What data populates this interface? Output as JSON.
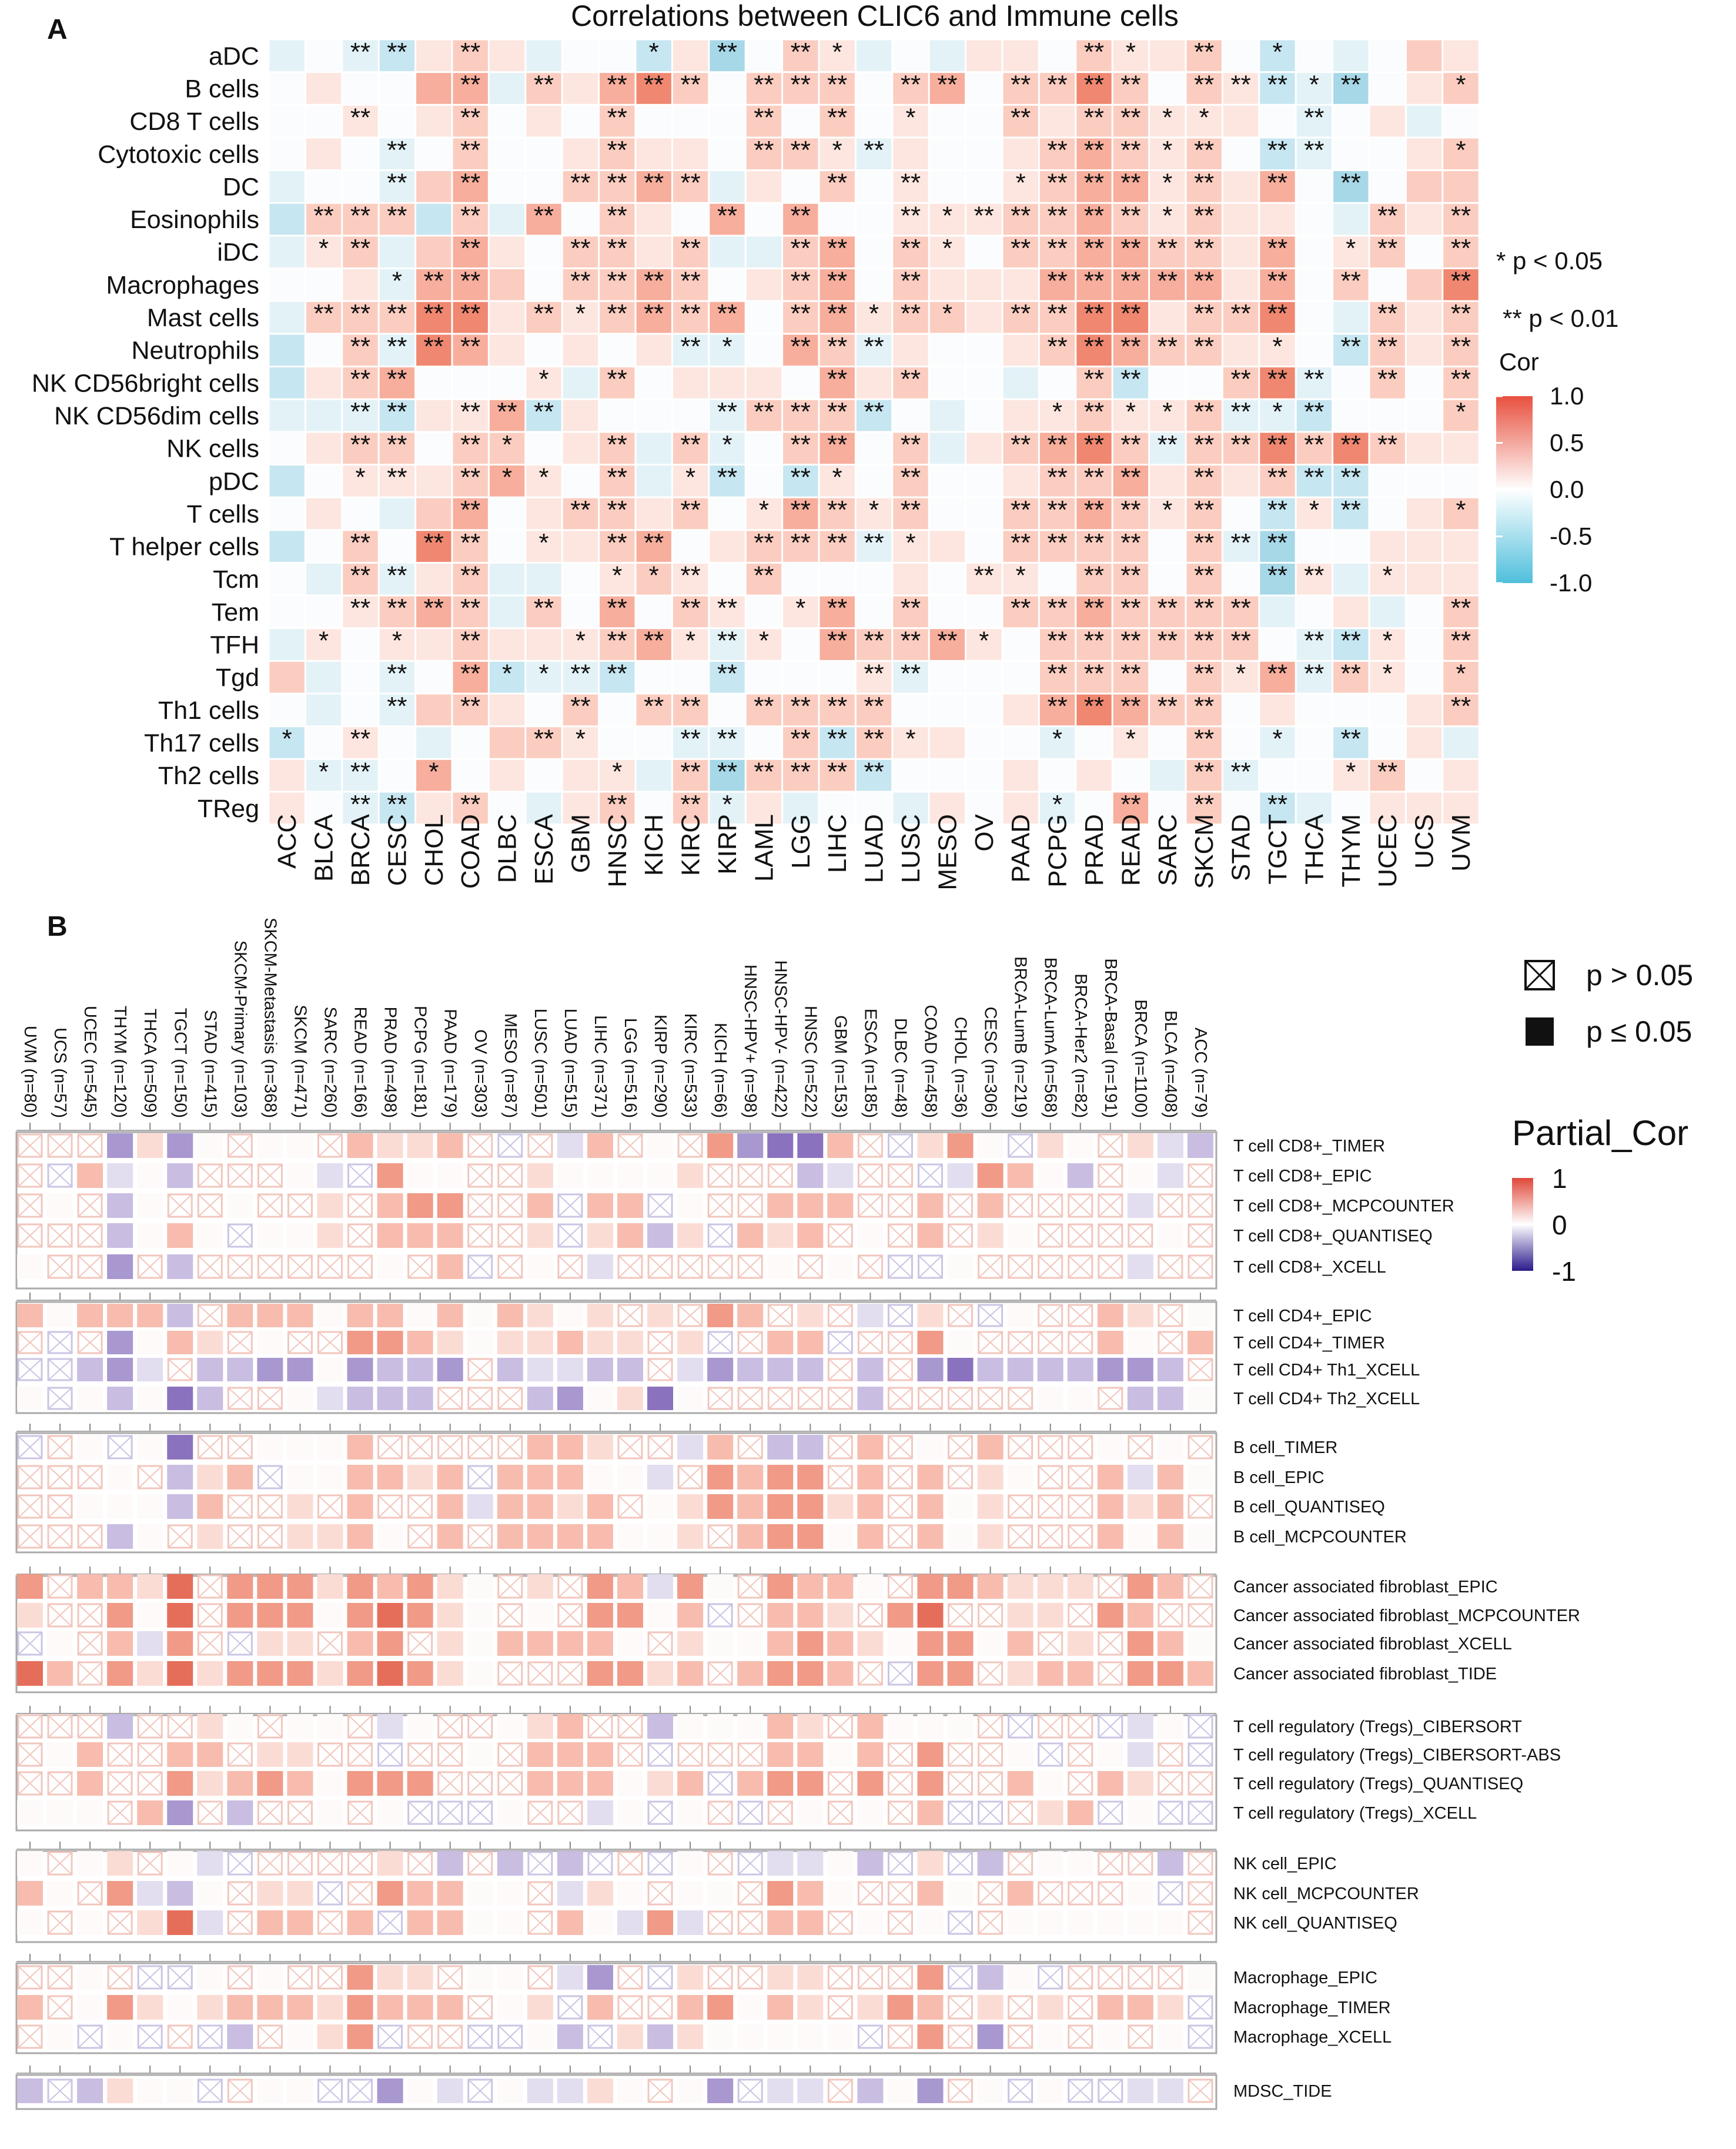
{
  "chart_data": [
    {
      "type": "heatmap",
      "panel_label": "A",
      "title": "Correlations between CLIC6 and Immune cells",
      "value_encoding": "each token = correlation level (level x 0.15 = approx Cor) followed by significance stars",
      "columns": [
        "ACC",
        "BLCA",
        "BRCA",
        "CESC",
        "CHOL",
        "COAD",
        "DLBC",
        "ESCA",
        "GBM",
        "HNSC",
        "KICH",
        "KIRC",
        "KIRP",
        "LAML",
        "LGG",
        "LIHC",
        "LUAD",
        "LUSC",
        "MESO",
        "OV",
        "PAAD",
        "PCPG",
        "PRAD",
        "READ",
        "SARC",
        "SKCM",
        "STAD",
        "TGCT",
        "THCA",
        "THYM",
        "UCEC",
        "UCS",
        "UVM"
      ],
      "rows": [
        {
          "label": "aDC",
          "cells": "-1 0 -1** -2** 1 2** 1 -1 0 0 -2* 1 -3** 0 2** 1* -1 0 -1 1 1 0 2** 1* 1 2** 0 -2* 0 -1 0 2 1"
        },
        {
          "label": "B cells",
          "cells": "0 1 0 0 3 3** -1 2** 1 3** 4** 2** 0 2** 2** 2** 0 2** 3** 0 2** 2** 4** 2** 0 2** 1** -2** -1* -3** 0 1 2*"
        },
        {
          "label": "CD8 T cells",
          "cells": "0 0 1** 0 1 2** 0 1 0 2** 0 0 0 2** 0 2** 0 1* 0 0 2** 1 2** 2** 1* 1* 1 0 -1** 0 1 -1 0"
        },
        {
          "label": "Cytotoxic cells",
          "cells": "0 1 0 -1** 0 2** 0 0 1 2** 1 1 0 2** 2** 1* -1** 1 0 0 1 2** 3** 2** 1* 2** 0 -2** -1** 0 0 1 2*"
        },
        {
          "label": "DC",
          "cells": "-1 0 0 -1** 2 3** 0 0 2** 2** 3** 2** -1 1 0 2** 0 1** 0 0 1* 2** 3** 3** 1* 2** 1 3** 0 -3** 0 2 2"
        },
        {
          "label": "Eosinophils",
          "cells": "-2 2** 2** 2** -2 2** -1 3** 0 2** 1 0 3** 0 3** 0 0 1** 1* 1** 2** 2** 3** 2** 1* 2** 1 1 0 -1 2** 1 2**"
        },
        {
          "label": "iDC",
          "cells": "-1 1* 2** -1 2 3** 1 0 2** 2** 1 2** -1 -1 2** 3** 0 2** 1* 0 2** 2** 3** 3** 2** 2** 1 3** 0 1* 2** 0 2**"
        },
        {
          "label": "Macrophages",
          "cells": "0 0 1 -1* 3** 3** 2 0 2** 2** 3** 2** 0 1 2** 3** 0 2** 1 1 1 3** 3** 3** 3** 3** 1 3** 0 2** 0 2 4**"
        },
        {
          "label": "Mast cells",
          "cells": "-1 2** 2** 2** 4** 4** 1 2** 1* 2** 3** 2** 3** 0 2** 3** 1* 2** 2* 1 2** 2** 4** 4** 1 2** 2** 4** 0 -1 2** 1 2**"
        },
        {
          "label": "Neutrophils",
          "cells": "-2 0 2** -1** 4** 3** 1 0 1 0 1 -1** -1* 0 3** 2** -1** 1 0 0 1 2** 4** 3** 2** 2** 1 1* 0 -2** 2** 1 2**"
        },
        {
          "label": "NK CD56bright cells",
          "cells": "-2 1 2** 3** 0 0 0 1* -1 2** 0 1 1 1 0 3** 1 2** 0 0 -1 0 2** -2** 0 0 2** 4** -1** 0 2** 0 2**"
        },
        {
          "label": "NK CD56dim cells",
          "cells": "-1 -1 -1** -2** 1 1** 3** -2** 1 0 0 0 -1** 2** 2** 2** -2** 0 -1 0 1 1* 2** 1* 1* 2** -1** -1* -2** 0 0 0 2*"
        },
        {
          "label": "NK cells",
          "cells": "0 1 2** 2** 0 2** 2* 0 1 2** -1 2** -1* 0 2** 3** 0 2** -1 1 2** 3** 4** 2** -1** 2** 2** 4** 2** 4** 2** 1 1"
        },
        {
          "label": "pDC",
          "cells": "-2 0 1* 1** 1 2** 3* 1* 0 2** -1 1* -2** 0 -2** 1* 0 2** 0 0 1 2** 2** 3** 1 2** 1 2** -2** -2** 0 0 0"
        },
        {
          "label": "T cells",
          "cells": "0 1 0 -1 2 3** 0 1 2** 2** 1 2** 0 1* 3** 2** 1* 2** 0 0 2** 2** 3** 2** 1* 2** 0 -2** 1* -2** 0 1 2*"
        },
        {
          "label": "T helper cells",
          "cells": "-2 0 2** 0 4** 2** 0 1* 1 2** 3** 0 1 2** 2** 2** -1** 1* 1 0 2** 2** 2** 2** 0 2** -1** -3** 0 0 1 1 1"
        },
        {
          "label": "Tcm",
          "cells": "0 -1 2** -1** 1 2** -1 -1 0 1* 2* 1** 0 2** 0 0 0 1 0 1** 1* 0 2** 2** 0 2** 0 -3** 1** -1 1* 1 1"
        },
        {
          "label": "Tem",
          "cells": "0 0 1** 2** 3** 2** -1 2** 0 3** 0 2** 1** 0 1* 3** 0 2** 0 0 2** 2** 3** 2** 2** 2** 2** -1 0 1 -1 0 2**"
        },
        {
          "label": "TFH",
          "cells": "-1 1* 0 1* 1 2** 1 1 1* 2** 3** 1* -1** 1* 0 3** 2** 2** 3** 1* 0 2** 2** 2** 2** 2** 2** 0 -1** -2** 1* 0 2**"
        },
        {
          "label": "Tgd",
          "cells": "2 -1 0 -1** 0 3** -2* -1* -1** -2** 0 0 -2** 0 0 0 1** -1** 0 0 0 2** 2** 2** 0 2** 1* 3** -1** 2** 1* 0 2*"
        },
        {
          "label": "Th1 cells",
          "cells": "0 -1 0 -1** 2 2** 1 0 2** 0 2** 2** 0 2** 2** 2** 2** 0 0 0 1 3** 4** 3** 2** 2** 0 1 0 0 0 1 2**"
        },
        {
          "label": "Th17 cells",
          "cells": "-2* 0 1** 0 -1 0 2 2** 1* 0 0 -1** -1** 0 2** -2** 2** 1* 1 0 0 -1* 0 1* 0 2** 0 -1* 0 -2** 0 1 -1"
        },
        {
          "label": "Th2 cells",
          "cells": "1 -1* -1** 0 3* 0 1 0 1 1* -1 2** -3** 2** 2** 2** -2** 0 0 0 1 0 1 0 -1 2** -1** 0 0 1* 2** 0 1"
        },
        {
          "label": "TReg",
          "cells": "1 0 -1** -2** 1 2** 0 -1 1 2** 0 2** -1* 1 -1 0 0 -1 1 0 1 -1* 0 3** 0 2** 0 -2** -1 0 1 1 1"
        }
      ],
      "legend": {
        "sig1": "* p < 0.05",
        "sig2": "** p < 0.01",
        "colorbar_title": "Cor",
        "ticks": [
          "1.0",
          "0.5",
          "0.0",
          "-0.5",
          "-1.0"
        ],
        "range": [
          -1,
          1
        ],
        "colors": {
          "high": "#e8513f",
          "mid": "#ffffff",
          "low": "#4fbfdc"
        }
      }
    },
    {
      "type": "heatmap",
      "panel_label": "B",
      "value_encoding": "1-4 = positive partial cor (red, increasing), a-d = negative (purple, increasing), '.' = near zero, x/y = p > 0.05 (crossed; x reddish, y purplish)",
      "columns": [
        "UVM (n=80)",
        "UCS (n=57)",
        "UCEC (n=545)",
        "THYM (n=120)",
        "THCA (n=509)",
        "TGCT (n=150)",
        "STAD (n=415)",
        "SKCM-Primary (n=103)",
        "SKCM-Metastasis (n=368)",
        "SKCM (n=471)",
        "SARC (n=260)",
        "READ (n=166)",
        "PRAD (n=498)",
        "PCPG (n=181)",
        "PAAD (n=179)",
        "OV (n=303)",
        "MESO (n=87)",
        "LUSC (n=501)",
        "LUAD (n=515)",
        "LIHC (n=371)",
        "LGG (n=516)",
        "KIRP (n=290)",
        "KIRC (n=533)",
        "KICH (n=66)",
        "HNSC-HPV+ (n=98)",
        "HNSC-HPV- (n=422)",
        "HNSC (n=522)",
        "GBM (n=153)",
        "ESCA (n=185)",
        "DLBC (n=48)",
        "COAD (n=458)",
        "CHOL (n=36)",
        "CESC (n=306)",
        "BRCA-LumB (n=219)",
        "BRCA-LumA (n=568)",
        "BRCA-Her2 (n=82)",
        "BRCA-Basal (n=191)",
        "BRCA (n=1100)",
        "BLCA (n=408)",
        "ACC (n=79)"
      ],
      "groups": [
        {
          "rows": [
            {
              "label": "T cell CD8+_TIMER",
              "codes": "xxxc1c.x..x2112xyxa2x.x3cdd2xy13.y1.x1ab"
            },
            {
              "label": "T cell CD8+_EPIC",
              "codes": "xy2a.bxxx.ay3..xx1....1xxxbaxxya32.bx.ax"
            },
            {
              "label": "T cell CD8+_MCPCOUNTER",
              "codes": "x.xb.xx.xx1x233xx2y22y.xx222xx2x2xxxxaxx"
            },
            {
              "label": "T cell CD8+_QUANTISEQ",
              "codes": "xxxb.2.y..1x222xx1y12b1y212x.x2x1.xxxx.x"
            },
            {
              "label": "T cell CD8+_XCELL",
              "codes": ".xxcxbxxxxxx.x2yx.xaxxxxx.x.xyy.xxxxxaxx"
            }
          ]
        },
        {
          "rows": [
            {
              "label": "T cell CD4+_EPIC",
              "codes": "2.222bx222.22.2.21.1x1x32x1xay1xy.xx21x."
            },
            {
              "label": "T cell CD4+_TIMER",
              "codes": "xyxc.21x.xx3321.11211x1yx22yxx3.xxxx2.x2"
            },
            {
              "label": "T cell CD4+ Th1_XCELL",
              "codes": "yybcaxbbcc.cbbcxbaabbxacbbbxbxcdbbbbccbx"
            },
            {
              "label": "T cell CD4+ Th2_XCELL",
              "codes": ".y.b.dbxx.abbbxxxbc.1d.xxxxxbxxxxx..xbb."
            }
          ]
        },
        {
          "rows": [
            {
              "label": "B cell_TIMER",
              "codes": "yx.y.dxx...2xxxxx221xxa2xbbx2x.x2xxx.x.x"
            },
            {
              "label": "B cell_EPIC",
              "codes": "xxx.xb12y..2212y222..ax3233x2x2x1.xx2a2."
            },
            {
              "label": "B cell_QUANTISEQ",
              "codes": "xx...b2xx1x2xx2a2212x.1323312x2.1xxx212x"
            },
            {
              "label": "B cell_MCPCOUNTER",
              "codes": "xxxb.x1xx112.x2x2222..1x233.2x2.1xxx2.2."
            }
          ]
        },
        {
          "rows": [
            {
              "label": "Cancer associated fibroblast_EPIC",
              "codes": "3x2214x33313231.x1x32a3.x322.x332111x32x"
            },
            {
              "label": "Cancer associated fibroblast_MCPCOUNTER",
              "codes": "1xx3.4x333.3431.x.x33.2yx221x34xx11x32xx"
            },
            {
              "label": "Cancer associated fibroblast_XCELL",
              "codes": "y.x2a3xy11x23x1.2222.x1..2321.33.2x1x32."
            },
            {
              "label": "Cancer associated fibroblast_TIDE",
              "codes": "42x314133313431.xxx3312x2332xy33x122x332"
            }
          ]
        },
        {
          "rows": [
            {
              "label": "T cell regulatory (Tregs)_CIBERSORT",
              "codes": "xxxbxx1.x..xa.xx.12xxb...21x2...xyxxya.y"
            },
            {
              "label": "T cell regulatory (Tregs)_CIBERSORT-ABS",
              "codes": "x.2xx22x11xxyxx.x222xyxxx22.2x3xx.yx.axy"
            },
            {
              "label": "T cell regulatory (Tregs)_QUANTISEQ",
              "codes": "xx2xx31232.333xxx222.12y233x3x3xx2.x21xx"
            },
            {
              "label": "T cell regulatory (Tregs)_XCELL",
              "codes": "...x2cxbxx.x.yyy.xxa.y.xyx.x.x2yyx12y.yy"
            }
          ]
        },
        {
          "rows": [
            {
              "label": "NK cell_EPIC",
              "codes": ".x.1x.ayxxxx1xbxbybyxy.xyaa.by1ybx..xxbx"
            },
            {
              "label": "NK cell_MCPCOUNTER",
              "codes": "2.x3ab.x11yx322..xa1.x..x32.xx2.x2xxx.yx"
            },
            {
              "label": "NK cell_QUANTISEQ",
              "codes": ".x.x14ax22x2y22..x2.a3axx22x.x.yx......x"
            }
          ]
        },
        {
          "rows": [
            {
              "label": "Macrophage_EPIC",
              "codes": "xx.xyy.x.xx311x..xacxy1xx11xxx3yb.yxxxx."
            },
            {
              "label": "Macrophage_TIMER",
              "codes": "2x.31.122213222x.1y2xx23.21x132x1x1x221y"
            },
            {
              "label": "Macrophage_XCELL",
              "codes": "x.y.yxybx.13yxxyy.by1b1.....yx3xcx.x.x.y"
            }
          ]
        },
        {
          "rows": [
            {
              "label": "MDSC_TIDE",
              "codes": "byb1..yx..yyc.ay.aa1.x.cyaaxb.cx.y.yyaax"
            }
          ]
        }
      ],
      "legend": {
        "nonsig": "p > 0.05",
        "sig": "p ≤ 0.05",
        "colorbar_title": "Partial_Cor",
        "ticks": [
          "1",
          "0",
          "-1"
        ],
        "range": [
          -1,
          1
        ],
        "colors": {
          "high": "#e0483a",
          "mid": "#ffffff",
          "low": "#2a1a8c"
        }
      }
    }
  ]
}
